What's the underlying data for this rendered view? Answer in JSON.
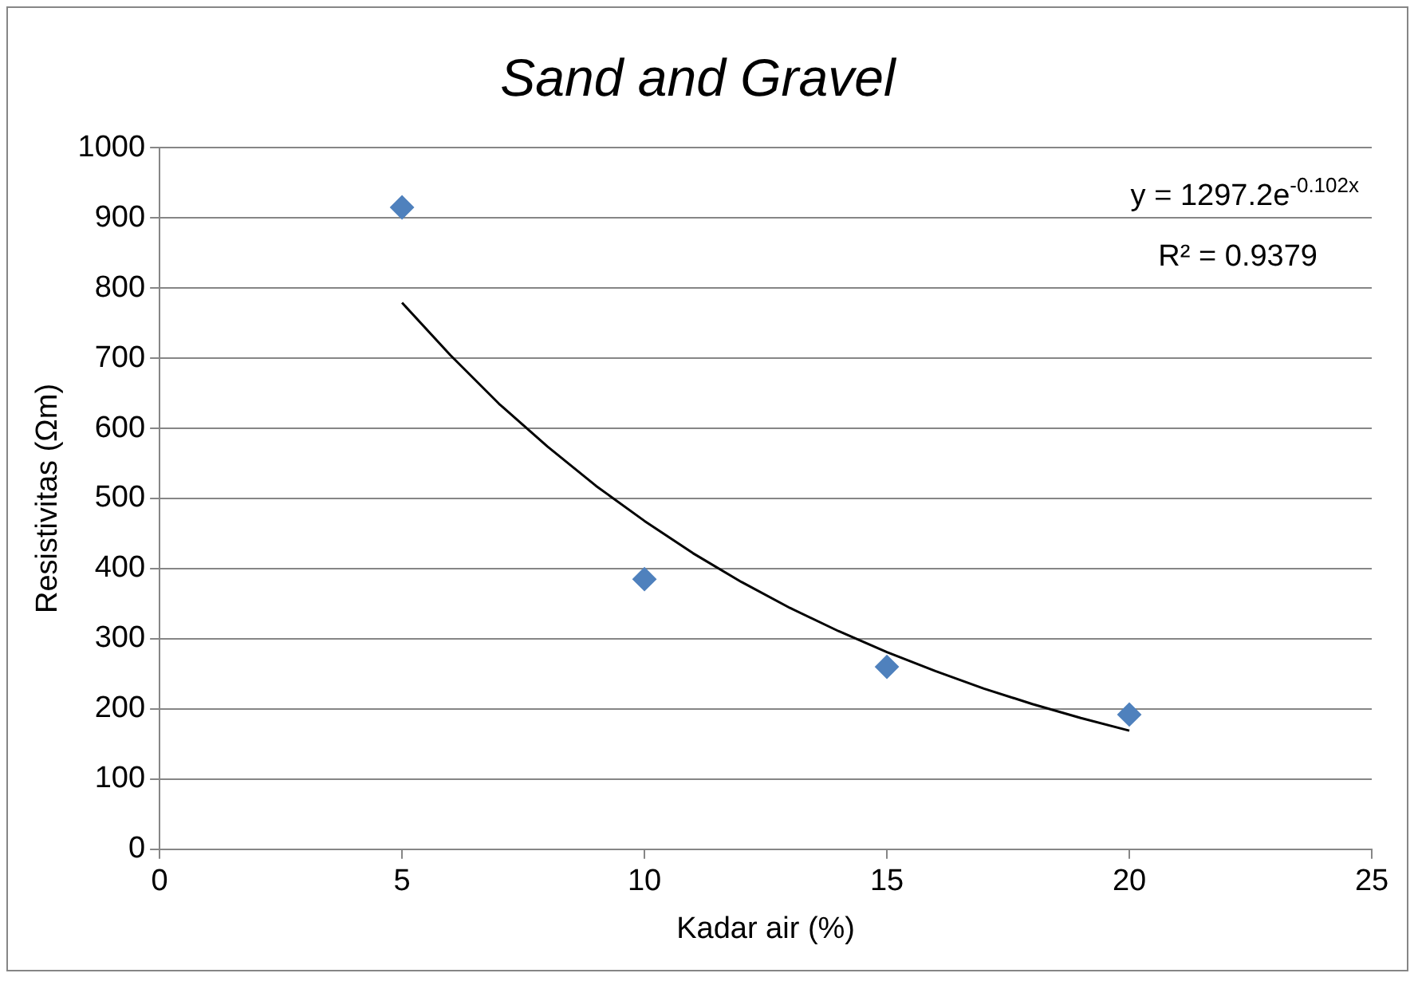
{
  "chart_data": {
    "type": "scatter",
    "title": "Sand and Gravel",
    "xlabel": "Kadar air (%)",
    "ylabel": "Resistivitas (Ωm)",
    "xlim": [
      0,
      25
    ],
    "xticks": [
      0,
      5,
      10,
      15,
      20,
      25
    ],
    "ylim": [
      0,
      1000
    ],
    "yticks": [
      0,
      100,
      200,
      300,
      400,
      500,
      600,
      700,
      800,
      900,
      1000
    ],
    "grid": "y",
    "legend": false,
    "marker": "diamond",
    "series": [
      {
        "color": "#4f81bd",
        "x": [
          5,
          10,
          15,
          20
        ],
        "values": [
          915,
          385,
          260,
          192
        ]
      },
      {
        "type": "line",
        "color": "#000000",
        "marker": "none",
        "x": [
          5,
          6,
          7,
          8,
          9,
          10,
          11,
          12,
          13,
          14,
          15,
          16,
          17,
          18,
          19,
          20
        ],
        "values": [
          779,
          704,
          635,
          574,
          518,
          468,
          422,
          381,
          344,
          311,
          281,
          254,
          229,
          207,
          187,
          169
        ]
      }
    ],
    "annotations": [
      "y = 1297.2e$^{-0.102x}$",
      "R² = 0.9379"
    ]
  }
}
